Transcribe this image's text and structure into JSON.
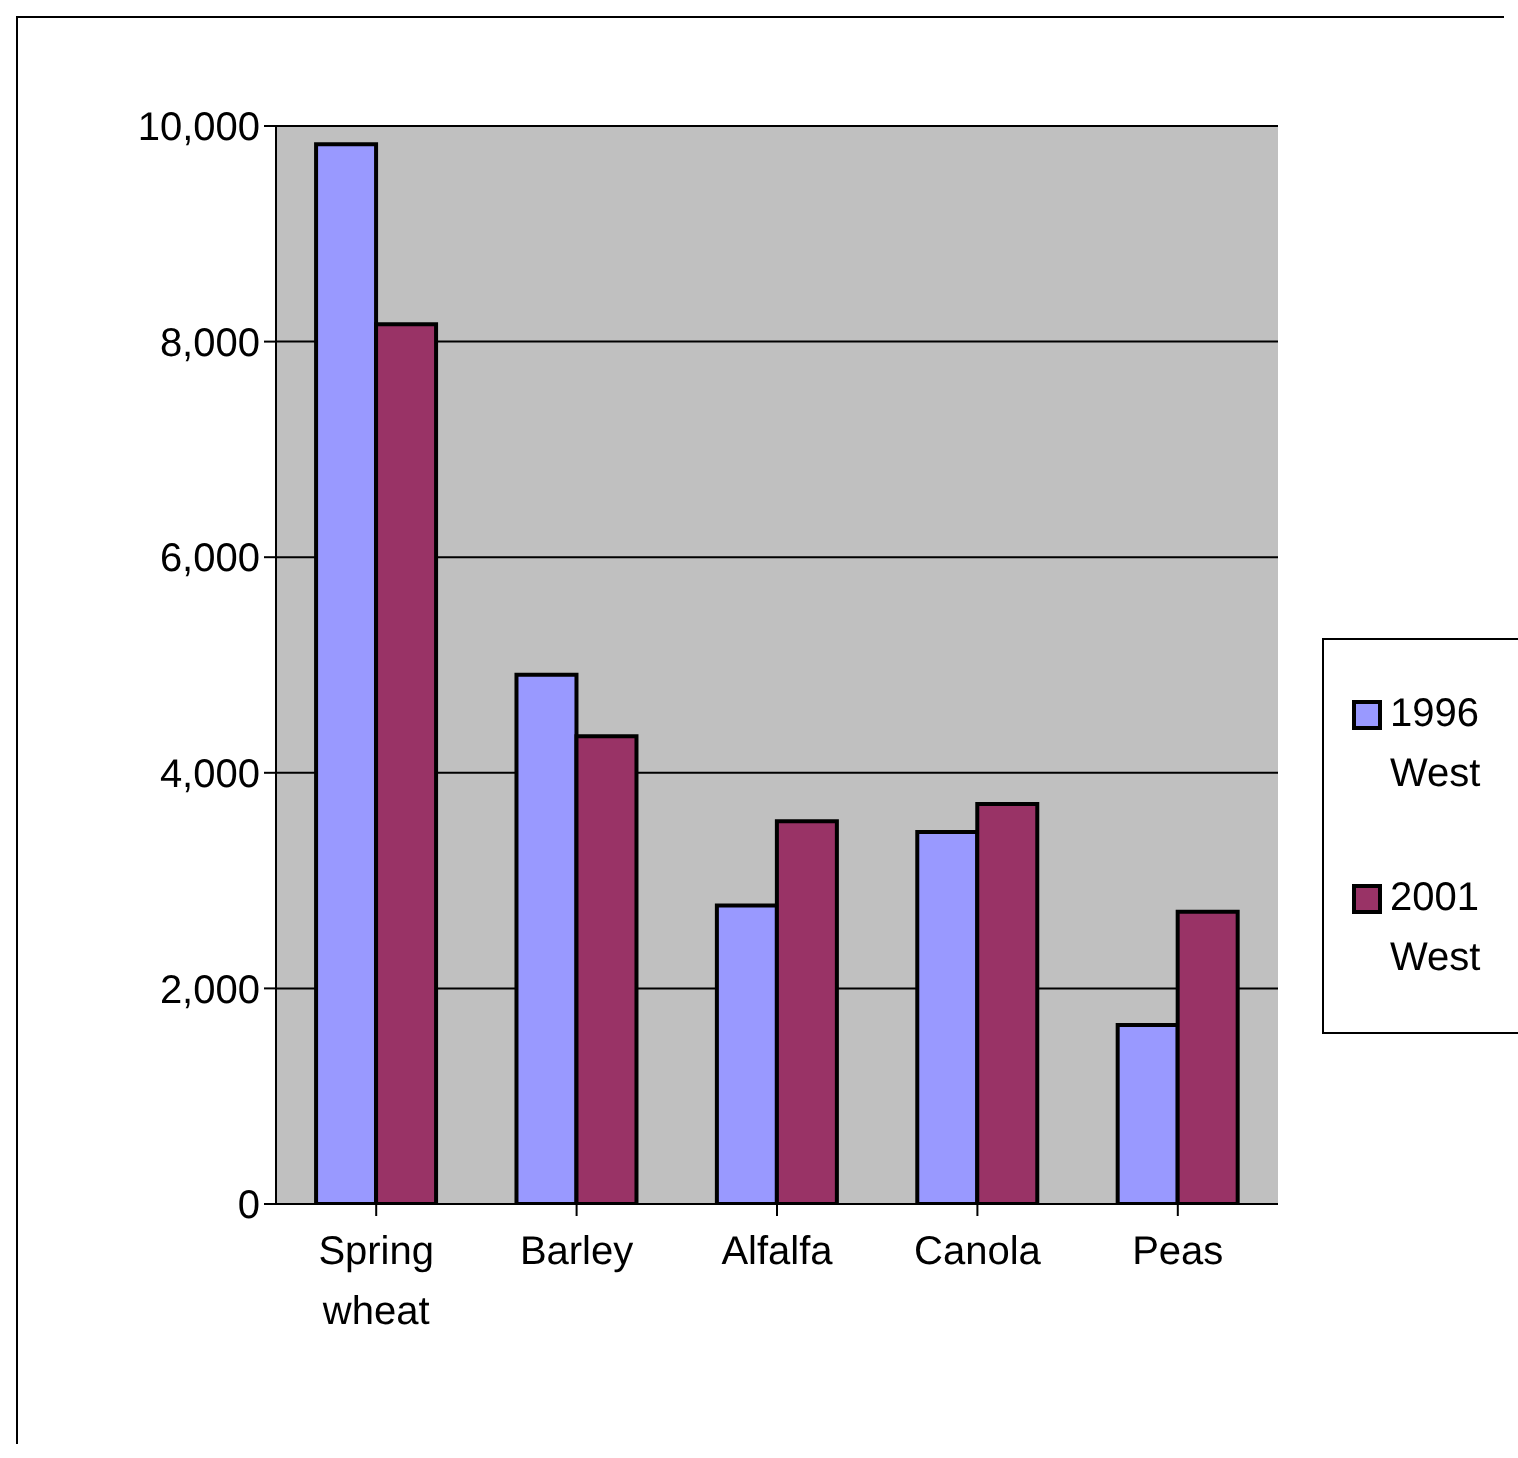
{
  "chart_data": {
    "type": "bar",
    "categories": [
      "Spring wheat",
      "Barley",
      "Alfalfa",
      "Canola",
      "Peas"
    ],
    "series": [
      {
        "name": "1996 West",
        "color": "#9999ff",
        "values": [
          9830,
          4910,
          2770,
          3450,
          1660
        ]
      },
      {
        "name": "2001 West",
        "color": "#993366",
        "values": [
          8160,
          4340,
          3550,
          3710,
          2710
        ]
      }
    ],
    "ylim": [
      0,
      10000
    ],
    "yticks": [
      {
        "value": 0,
        "label": "0"
      },
      {
        "value": 2000,
        "label": "2,000"
      },
      {
        "value": 4000,
        "label": "4,000"
      },
      {
        "value": 6000,
        "label": "6,000"
      },
      {
        "value": 8000,
        "label": "8,000"
      },
      {
        "value": 10000,
        "label": "10,000"
      }
    ],
    "grid": "y",
    "legend": "right"
  }
}
